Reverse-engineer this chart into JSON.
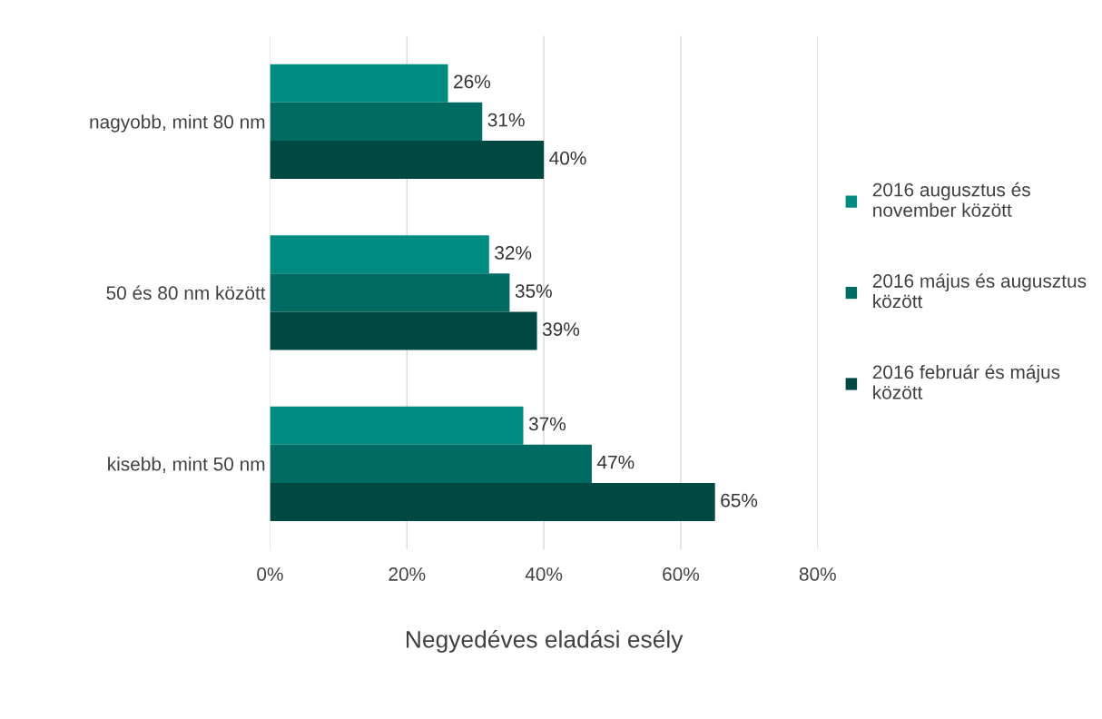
{
  "chart_data": {
    "type": "bar",
    "orientation": "horizontal",
    "xlabel": "Negyedéves eladási esély",
    "categories": [
      "nagyobb, mint 80 nm",
      "50 és 80 nm között",
      "kisebb, mint 50 nm"
    ],
    "series": [
      {
        "name": "2016 augusztus és november között",
        "color": "#008b80",
        "values": [
          26,
          32,
          37
        ],
        "value_labels": [
          "26%",
          "32%",
          "37%"
        ]
      },
      {
        "name": "2016 május és augusztus között",
        "color": "#006b62",
        "values": [
          31,
          35,
          47
        ],
        "value_labels": [
          "31%",
          "35%",
          "47%"
        ]
      },
      {
        "name": "2016 február és május között",
        "color": "#004842",
        "values": [
          40,
          39,
          65
        ],
        "value_labels": [
          "40%",
          "39%",
          "65%"
        ]
      }
    ],
    "xlim": [
      0,
      80
    ],
    "xticks": [
      {
        "value": 0,
        "label": "0%"
      },
      {
        "value": 20,
        "label": "20%"
      },
      {
        "value": 40,
        "label": "40%"
      },
      {
        "value": 60,
        "label": "60%"
      },
      {
        "value": 80,
        "label": "80%"
      }
    ],
    "grid": "x",
    "legend": "right"
  }
}
